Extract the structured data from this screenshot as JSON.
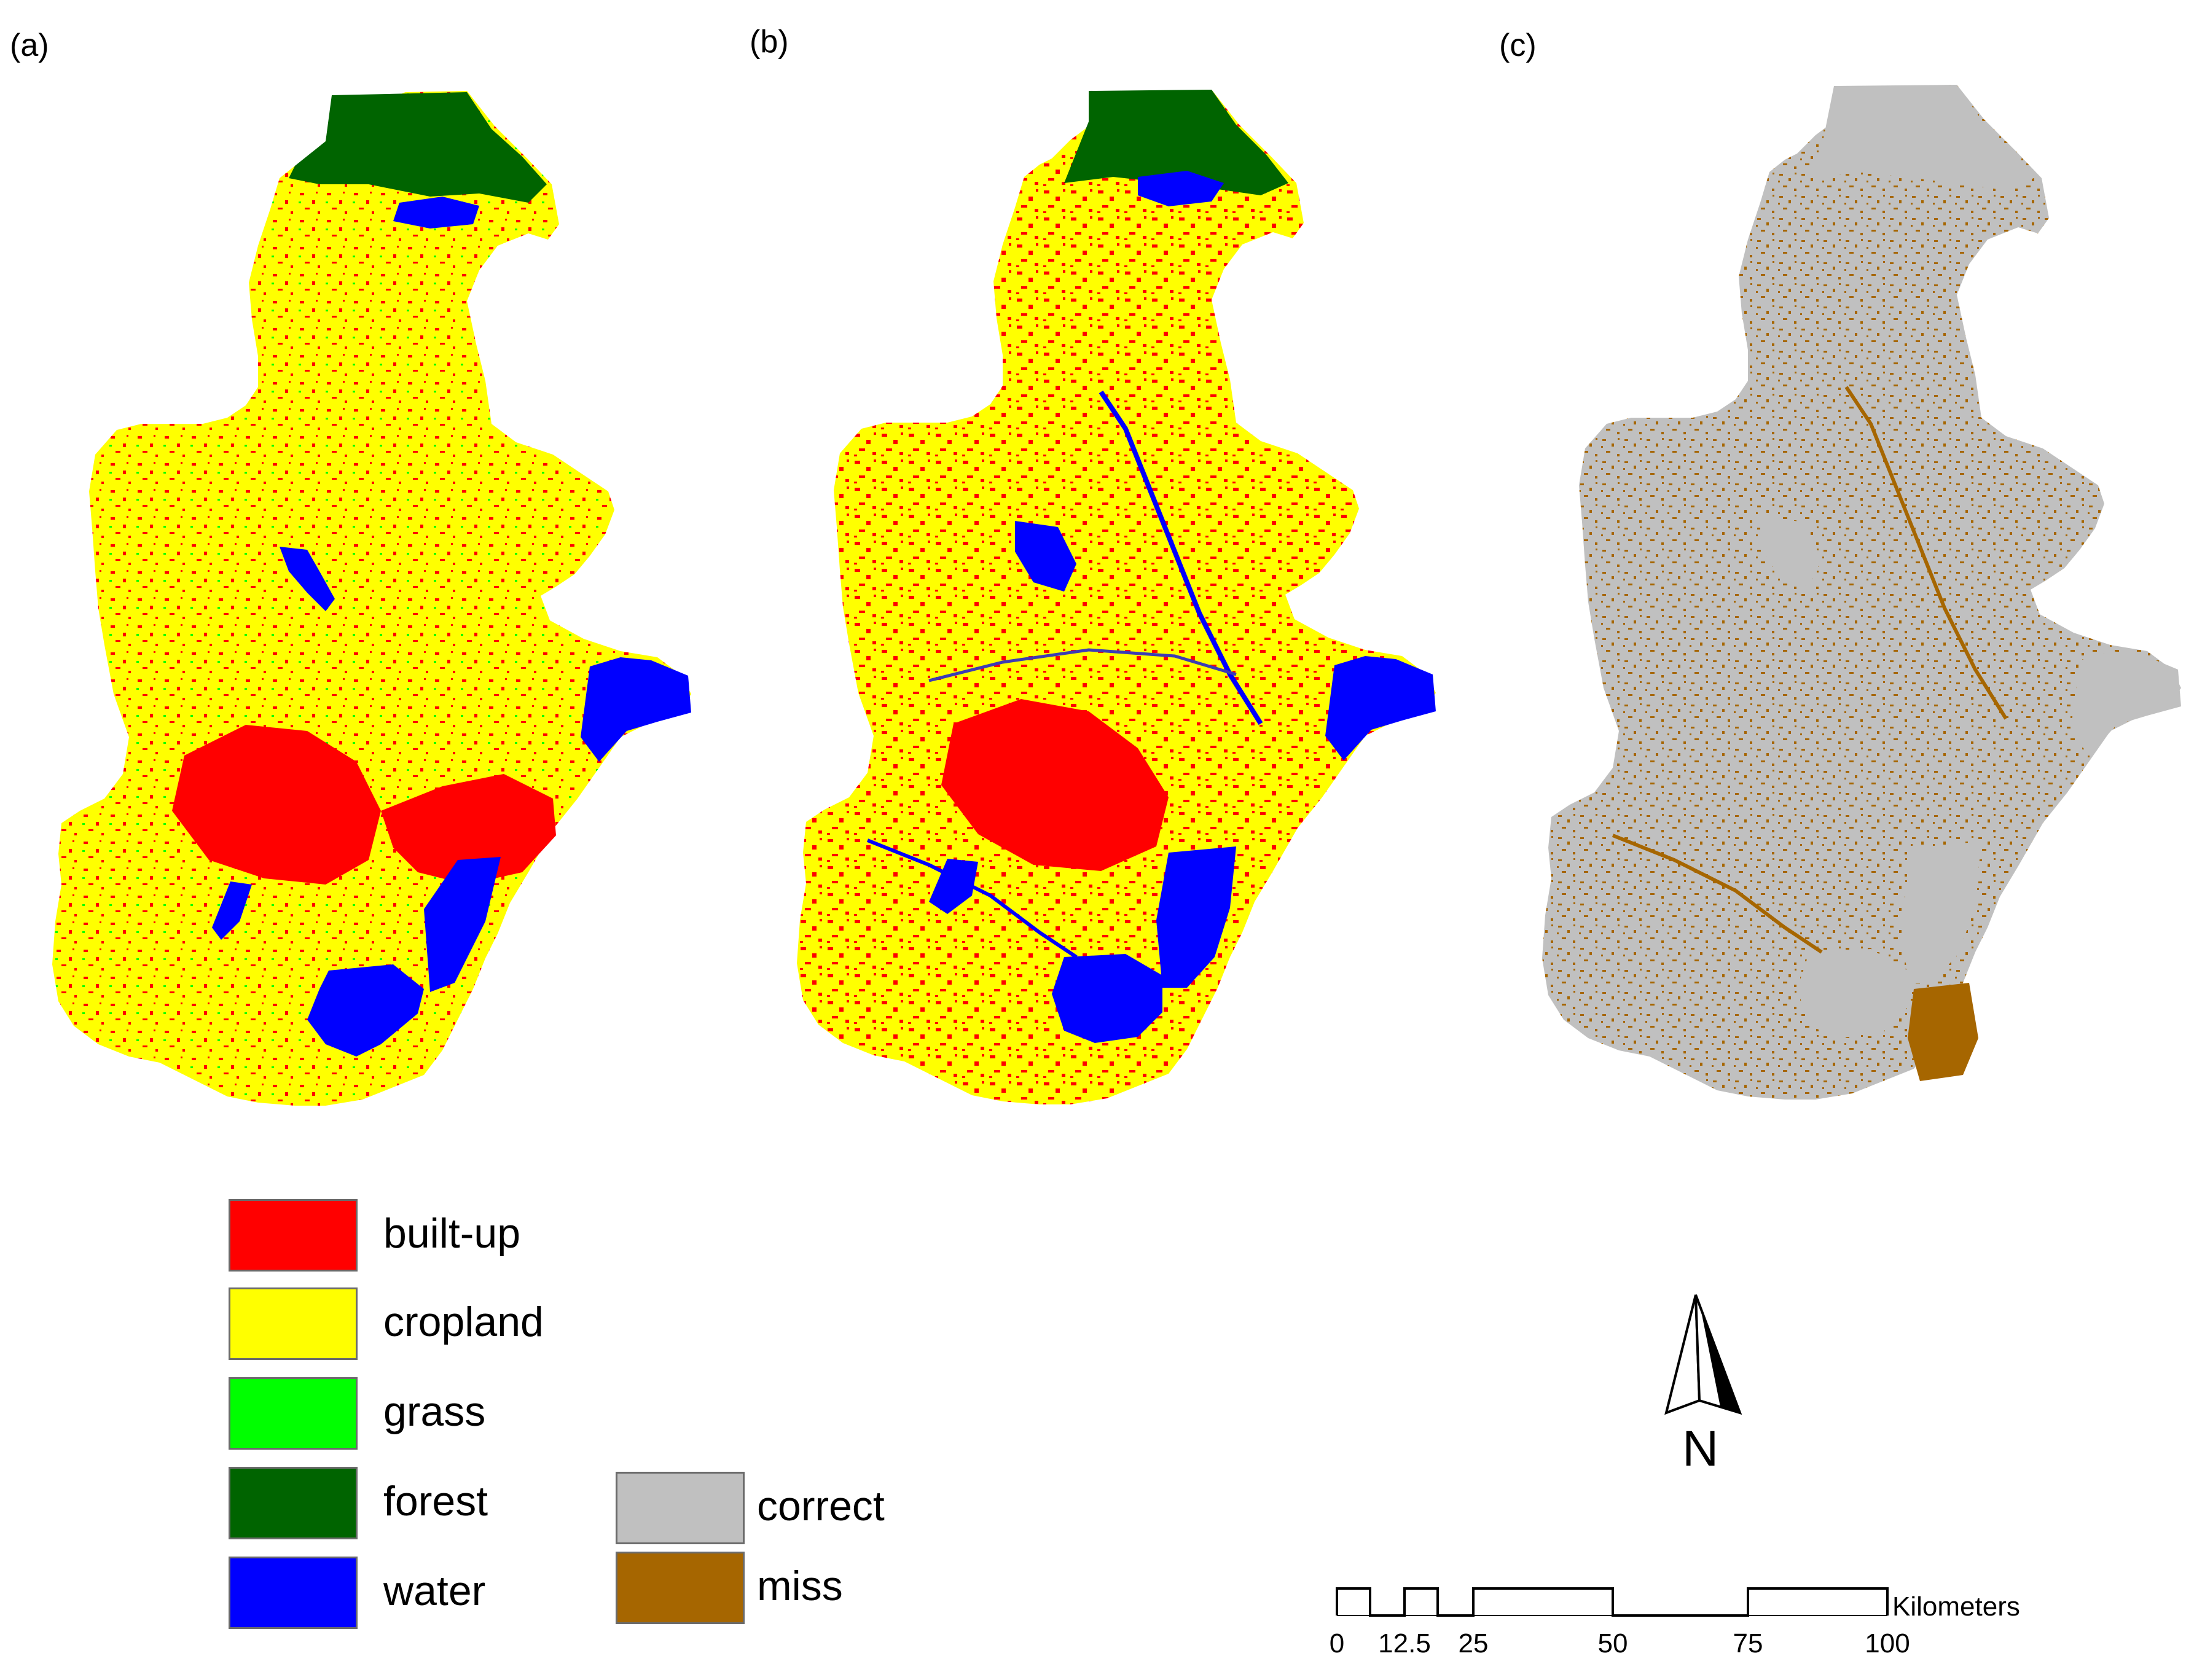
{
  "panels": {
    "a": "(a)",
    "b": "(b)",
    "c": "(c)"
  },
  "legend_landcover": [
    {
      "key": "builtup",
      "label": "built-up",
      "color": "#ff0000"
    },
    {
      "key": "cropland",
      "label": "cropland",
      "color": "#ffff00"
    },
    {
      "key": "grass",
      "label": "grass",
      "color": "#00ff00"
    },
    {
      "key": "forest",
      "label": "forest",
      "color": "#006400"
    },
    {
      "key": "water",
      "label": "water",
      "color": "#0000ff"
    }
  ],
  "legend_accuracy": [
    {
      "key": "correct",
      "label": "correct",
      "color": "#c0c0c0"
    },
    {
      "key": "miss",
      "label": "miss",
      "color": "#a66600"
    }
  ],
  "north_arrow": {
    "label": "N"
  },
  "scale_bar": {
    "unit": "Kilometers",
    "ticks": [
      "0",
      "12.5",
      "25",
      "50",
      "75",
      "100"
    ]
  }
}
